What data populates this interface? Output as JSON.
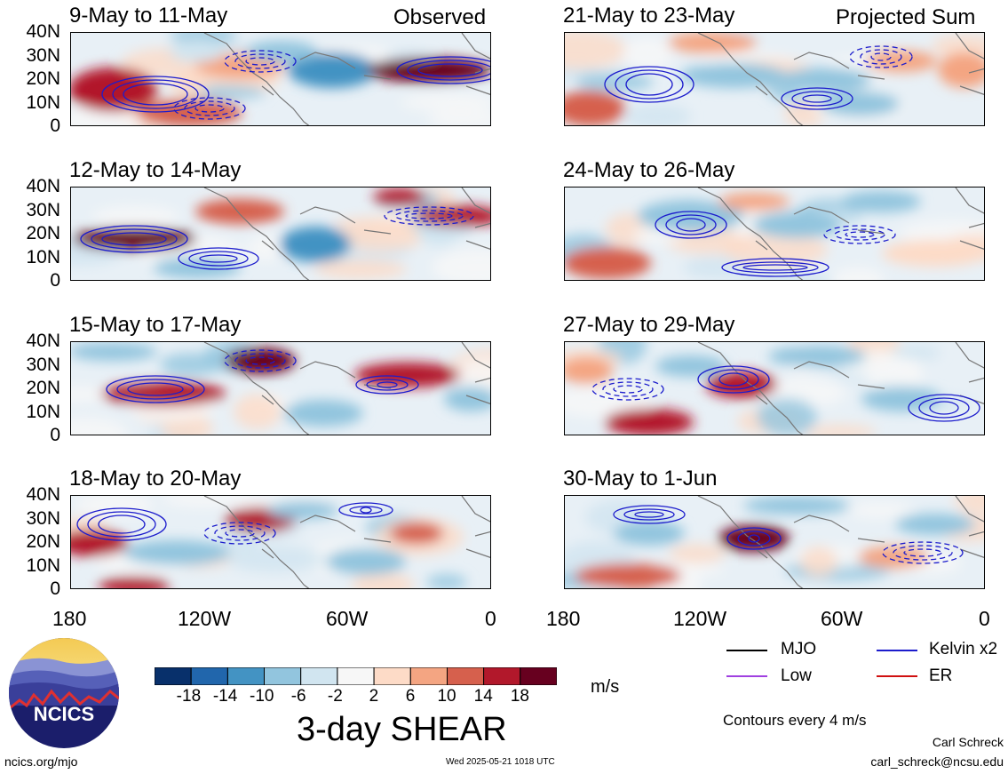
{
  "chart_data": {
    "type": "heatmap",
    "title": "3-day SHEAR",
    "units": "m/s",
    "colorbar_ticks": [
      "-18",
      "-14",
      "-10",
      "-6",
      "-2",
      "2",
      "6",
      "10",
      "14",
      "18"
    ],
    "colorbar_colors": [
      "#08306b",
      "#2166ac",
      "#4393c3",
      "#92c5de",
      "#d1e5f0",
      "#f7f7f7",
      "#fddbc7",
      "#f4a582",
      "#d6604d",
      "#b2182b",
      "#67001f"
    ],
    "x_ticks": [
      "180",
      "120W",
      "60W",
      "0"
    ],
    "y_ticks": [
      "40N",
      "30N",
      "20N",
      "10N",
      "0"
    ],
    "contour_note": "Contours every 4 m/s",
    "legend": [
      {
        "label": "MJO",
        "color": "#000000"
      },
      {
        "label": "Kelvin x2",
        "color": "#1c1ccc"
      },
      {
        "label": "Low",
        "color": "#a040e0"
      },
      {
        "label": "ER",
        "color": "#d01010"
      }
    ],
    "panels": [
      {
        "title": "9-May to 11-May",
        "tag": "Observed"
      },
      {
        "title": "21-May to 23-May",
        "tag": "Projected Sum"
      },
      {
        "title": "12-May to 14-May",
        "tag": ""
      },
      {
        "title": "24-May to 26-May",
        "tag": ""
      },
      {
        "title": "15-May to 17-May",
        "tag": ""
      },
      {
        "title": "27-May to 29-May",
        "tag": ""
      },
      {
        "title": "18-May to 20-May",
        "tag": ""
      },
      {
        "title": "30-May to 1-Jun",
        "tag": ""
      }
    ]
  },
  "footer": {
    "logo_text": "NCICS",
    "site": "ncics.org/mjo",
    "timestamp": "Wed 2025-05-21 1018 UTC",
    "author": "Carl Schreck",
    "email": "carl_schreck@ncsu.edu"
  }
}
